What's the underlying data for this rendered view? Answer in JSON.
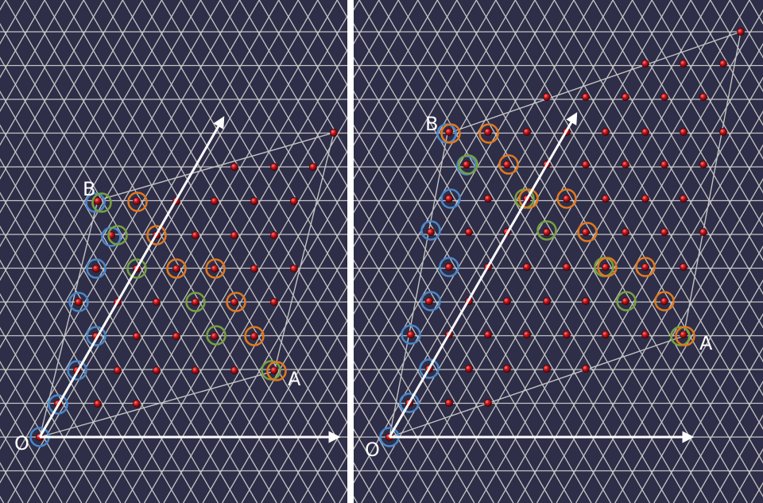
{
  "colors": {
    "background": "#2e2e48",
    "lattice": "#c4c4c4",
    "divider": "#ffffff",
    "atom": "#b8161a",
    "vector": "#ffffff",
    "ring_blue": "#4a86c8",
    "ring_green": "#78a040",
    "ring_orange": "#e0781e"
  },
  "left_panel": {
    "labels": {
      "origin": "O",
      "a": "A",
      "b": "B"
    }
  },
  "right_panel": {
    "labels": {
      "origin": "O",
      "a": "A",
      "b": "B"
    }
  }
}
